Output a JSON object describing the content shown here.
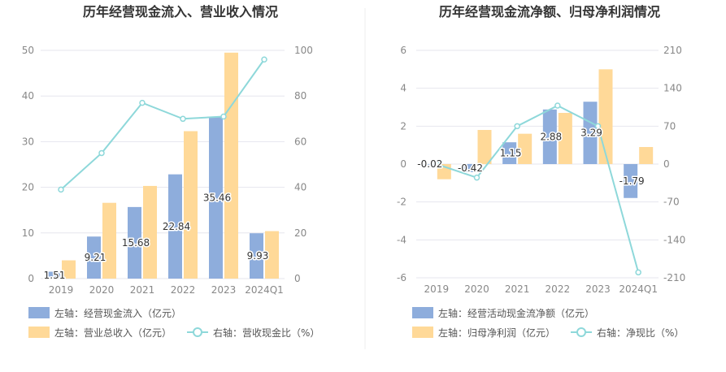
{
  "colors": {
    "bar_primary": "#8EADDC",
    "bar_secondary": "#FFD998",
    "line": "#8ED8DA",
    "grid": "#E6E6EE",
    "divider": "#EEEEEE"
  },
  "chart_data": [
    {
      "type": "bar",
      "title": "历年经营现金流入、营业收入情况",
      "categories": [
        "2019",
        "2020",
        "2021",
        "2022",
        "2023",
        "2024Q1"
      ],
      "left_axis": {
        "min": 0,
        "max": 50,
        "ticks": [
          "0",
          "10",
          "20",
          "30",
          "40",
          "50"
        ]
      },
      "right_axis": {
        "min": 0,
        "max": 100,
        "ticks": [
          "0",
          "20",
          "40",
          "60",
          "80",
          "100"
        ]
      },
      "series": [
        {
          "name": "左轴：经营现金流入（亿元）",
          "kind": "bar",
          "axis": "left",
          "values": [
            1.51,
            9.21,
            15.68,
            22.84,
            35.46,
            9.93
          ],
          "labels": [
            "1.51",
            "9.21",
            "15.68",
            "22.84",
            "35.46",
            "9.93"
          ]
        },
        {
          "name": "左轴：营业总收入（亿元）",
          "kind": "bar",
          "axis": "left",
          "values": [
            4.0,
            16.6,
            20.3,
            32.3,
            49.5,
            10.4
          ]
        },
        {
          "name": "右轴：营收现金比（%）",
          "kind": "line",
          "axis": "right",
          "values": [
            39,
            55,
            77,
            70,
            71,
            96
          ]
        }
      ]
    },
    {
      "type": "bar",
      "title": "历年经营现金流净额、归母净利润情况",
      "categories": [
        "2019",
        "2020",
        "2021",
        "2022",
        "2023",
        "2024Q1"
      ],
      "left_axis": {
        "min": -6,
        "max": 6,
        "ticks": [
          "-6",
          "-4",
          "-2",
          "0",
          "2",
          "4",
          "6"
        ]
      },
      "right_axis": {
        "min": -210,
        "max": 210,
        "ticks": [
          "-210",
          "-140",
          "-70",
          "0",
          "70",
          "140",
          "210"
        ]
      },
      "series": [
        {
          "name": "左轴：经营活动现金流净额（亿元）",
          "kind": "bar",
          "axis": "left",
          "values": [
            -0.02,
            -0.42,
            1.15,
            2.88,
            3.29,
            -1.79
          ],
          "labels": [
            "-0.02",
            "-0.42",
            "1.15",
            "2.88",
            "3.29",
            "-1.79"
          ]
        },
        {
          "name": "左轴：归母净利润（亿元）",
          "kind": "bar",
          "axis": "left",
          "values": [
            -0.8,
            1.8,
            1.6,
            2.7,
            5.0,
            0.9
          ]
        },
        {
          "name": "右轴：净现比（%）",
          "kind": "line",
          "axis": "right",
          "values": [
            0,
            -25,
            70,
            108,
            70,
            -200
          ]
        }
      ]
    }
  ]
}
